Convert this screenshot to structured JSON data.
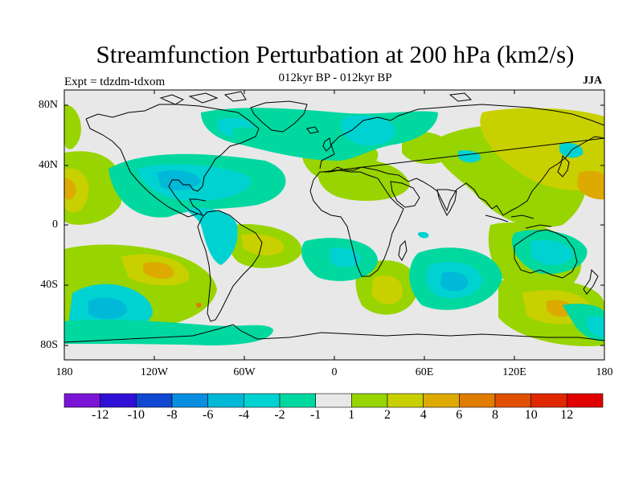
{
  "title": "Streamfunction Perturbation at 200 hPa (km2/s)",
  "subtitle": "012kyr BP - 012kyr BP",
  "experiment_label": "Expt = tdzdm-tdxom",
  "season": "JJA",
  "lat_labels": [
    "80N",
    "40N",
    "0",
    "40S",
    "80S"
  ],
  "lon_labels": [
    "180",
    "120W",
    "60W",
    "0",
    "60E",
    "120E",
    "180"
  ],
  "colorbar": {
    "labels": [
      "-12",
      "-10",
      "-8",
      "-6",
      "-4",
      "-2",
      "-1",
      "1",
      "2",
      "4",
      "6",
      "8",
      "10",
      "12"
    ],
    "colors": [
      "#7a14d6",
      "#3010d6",
      "#1048d2",
      "#0a8ee0",
      "#00b8d8",
      "#00d2d2",
      "#00d8a0",
      "#e8e8e8",
      "#98d400",
      "#c8d000",
      "#dcaa00",
      "#e07c00",
      "#e05000",
      "#e02800",
      "#e00000"
    ]
  },
  "field_colors": {
    "neutral": "#e8e8e8",
    "m2": "#00d8a0",
    "m4": "#00d2d2",
    "m6": "#00b8d8",
    "p1": "#98d400",
    "p2": "#c8d000",
    "p4": "#dcaa00",
    "p6": "#e07c00"
  }
}
